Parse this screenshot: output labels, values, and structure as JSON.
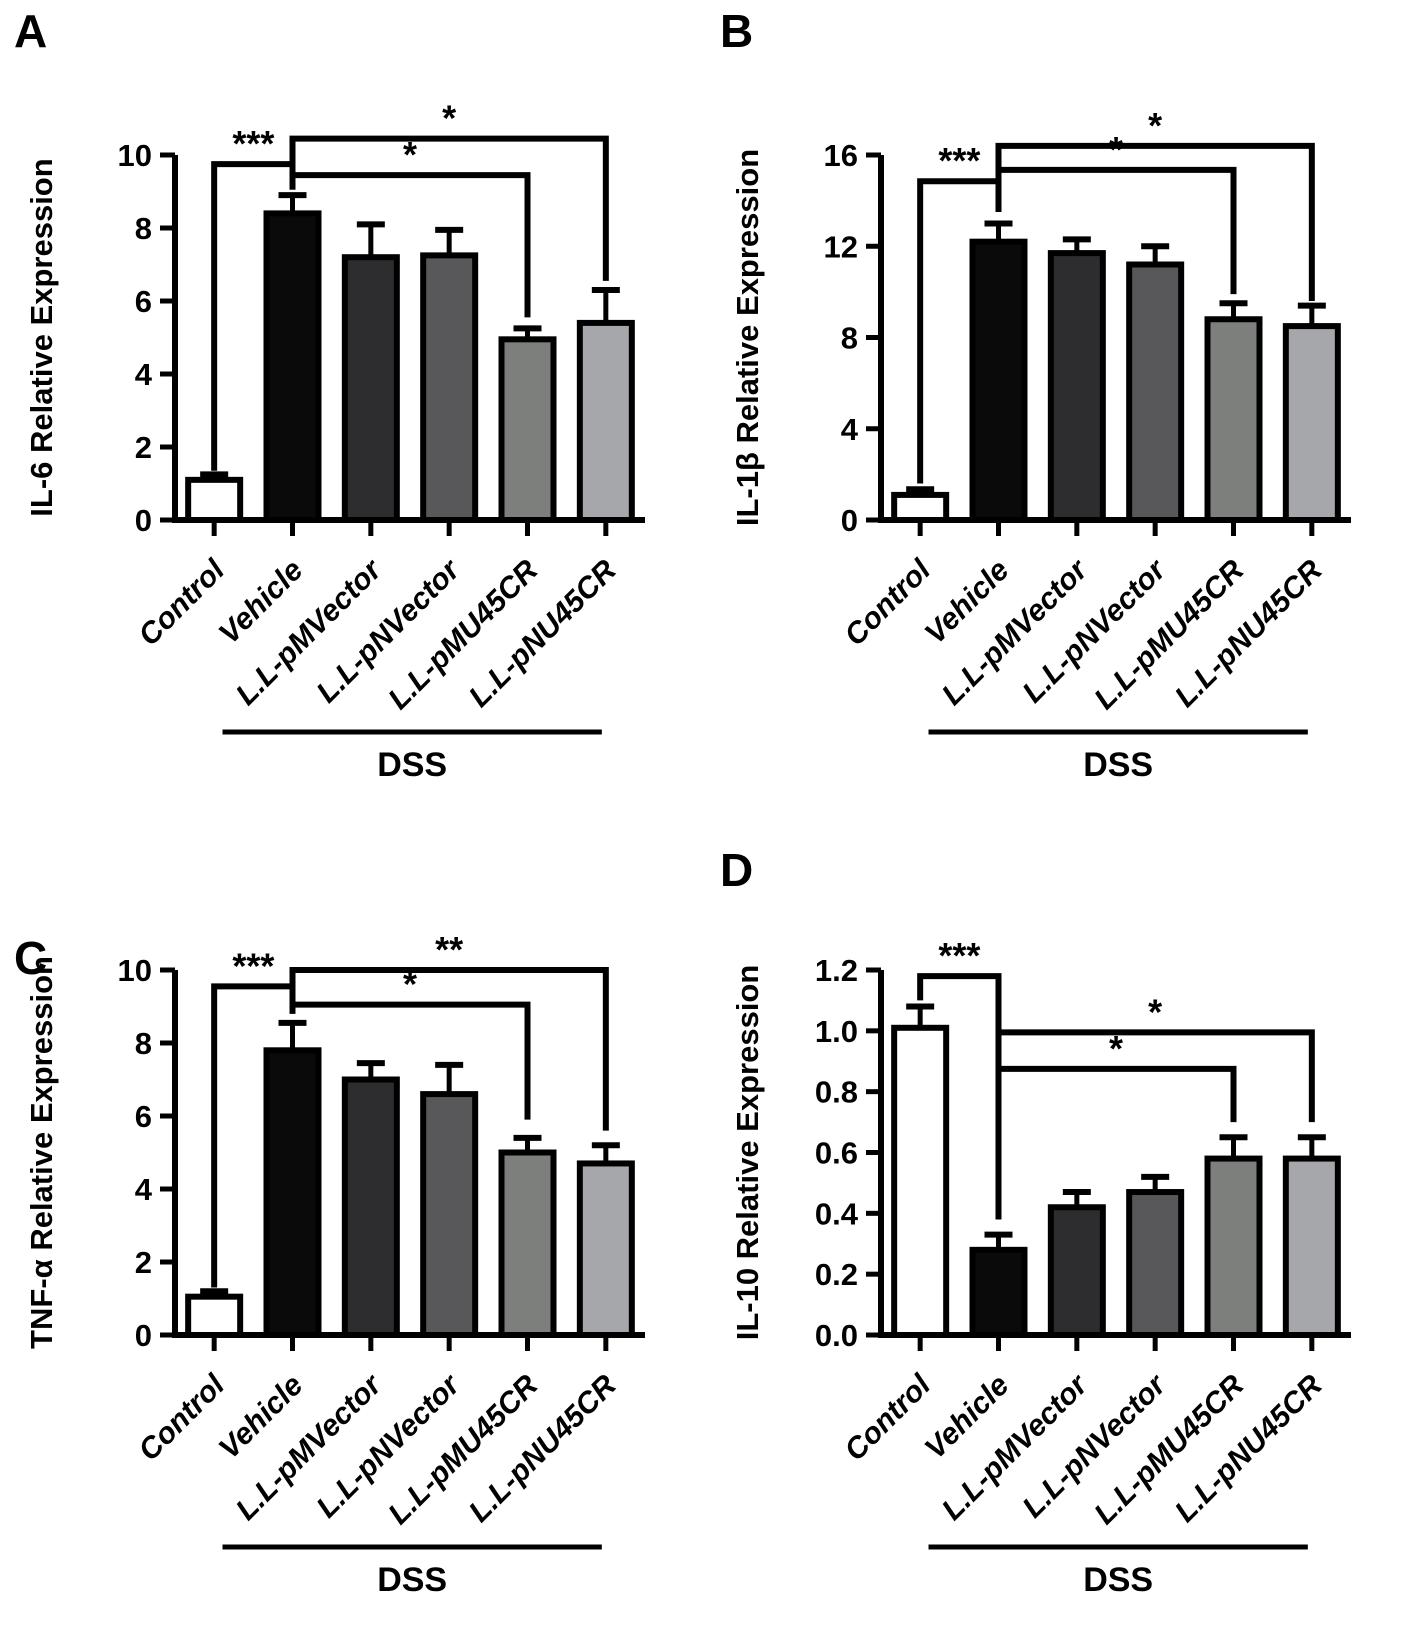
{
  "figure_name": "Cytokine relative expression bar figure",
  "styles": {
    "axis_color": "#000000",
    "bar_colors": [
      "#ffffff",
      "#0a0a0a",
      "#2d2d2f",
      "#58585a",
      "#7d7f7d",
      "#a5a7aa"
    ]
  },
  "chart_data": [
    {
      "type": "bar",
      "letter": "A",
      "ylabel": "IL-6 Relative Expression",
      "categories": [
        "Control",
        "Vehicle",
        "L.L-pMVector",
        "L.L-pNVector",
        "L.L-pMU45CR",
        "L.L-pNU45CR"
      ],
      "values": [
        1.1,
        8.4,
        7.2,
        7.25,
        4.95,
        5.4
      ],
      "errors": [
        0.15,
        0.5,
        0.9,
        0.7,
        0.3,
        0.9
      ],
      "ylim": [
        0,
        10
      ],
      "yticks": [
        "0",
        "2",
        "4",
        "6",
        "8",
        "10"
      ],
      "grid": false,
      "significance": [
        {
          "from": 1,
          "to": 5,
          "label": "*",
          "level": 10.45,
          "left_drop": 9.75,
          "right_drop": 6.55
        },
        {
          "from": 0,
          "to": 1,
          "label": "***",
          "level": 9.75,
          "left_drop": 1.35,
          "right_drop": 9.05
        },
        {
          "from": 1,
          "to": 4,
          "label": "*",
          "level": 9.45,
          "left_drop": 9.05,
          "right_drop": 5.55
        }
      ],
      "group": {
        "label": "DSS",
        "from": 1,
        "to": 5
      }
    },
    {
      "type": "bar",
      "letter": "B",
      "ylabel": "IL-1β Relative Expression",
      "categories": [
        "Control",
        "Vehicle",
        "L.L-pMVector",
        "L.L-pNVector",
        "L.L-pMU45CR",
        "L.L-pNU45CR"
      ],
      "values": [
        1.1,
        12.2,
        11.7,
        11.2,
        8.8,
        8.5
      ],
      "errors": [
        0.25,
        0.8,
        0.6,
        0.8,
        0.7,
        0.9
      ],
      "ylim": [
        0,
        16
      ],
      "yticks": [
        "0",
        "4",
        "8",
        "12",
        "16"
      ],
      "grid": false,
      "significance": [
        {
          "from": 1,
          "to": 5,
          "label": "*",
          "level": 16.4,
          "left_drop": 15.35,
          "right_drop": 9.6
        },
        {
          "from": 1,
          "to": 4,
          "label": "*",
          "level": 15.35,
          "left_drop": 13.5,
          "right_drop": 9.9
        },
        {
          "from": 0,
          "to": 1,
          "label": "***",
          "level": 14.85,
          "left_drop": 1.6,
          "right_drop": 13.5
        }
      ],
      "group": {
        "label": "DSS",
        "from": 1,
        "to": 5
      }
    },
    {
      "type": "bar",
      "letter": "C",
      "ylabel": "TNF-α Relative Expression",
      "categories": [
        "Control",
        "Vehicle",
        "L.L-pMVector",
        "L.L-pNVector",
        "L.L-pMU45CR",
        "L.L-pNU45CR"
      ],
      "values": [
        1.05,
        7.8,
        7.0,
        6.6,
        5.0,
        4.7
      ],
      "errors": [
        0.15,
        0.75,
        0.45,
        0.8,
        0.4,
        0.5
      ],
      "ylim": [
        0,
        10
      ],
      "yticks": [
        "0",
        "2",
        "4",
        "6",
        "8",
        "10"
      ],
      "grid": false,
      "significance": [
        {
          "from": 1,
          "to": 5,
          "label": "**",
          "level": 10.0,
          "left_drop": 9.55,
          "right_drop": 5.6
        },
        {
          "from": 0,
          "to": 1,
          "label": "***",
          "level": 9.55,
          "left_drop": 1.3,
          "right_drop": 8.8
        },
        {
          "from": 1,
          "to": 4,
          "label": "*",
          "level": 9.05,
          "left_drop": 8.8,
          "right_drop": 5.9
        }
      ],
      "group": {
        "label": "DSS",
        "from": 1,
        "to": 5
      }
    },
    {
      "type": "bar",
      "letter": "D",
      "ylabel": "IL-10 Relative Expression",
      "categories": [
        "Control",
        "Vehicle",
        "L.L-pMVector",
        "L.L-pNVector",
        "L.L-pMU45CR",
        "L.L-pNU45CR"
      ],
      "values": [
        1.01,
        0.28,
        0.42,
        0.47,
        0.58,
        0.58
      ],
      "errors": [
        0.07,
        0.05,
        0.05,
        0.05,
        0.07,
        0.07
      ],
      "ylim": [
        0,
        1.2
      ],
      "yticks": [
        "0.0",
        "0.2",
        "0.4",
        "0.6",
        "0.8",
        "1.0",
        "1.2"
      ],
      "grid": false,
      "significance": [
        {
          "from": 0,
          "to": 1,
          "label": "***",
          "level": 1.18,
          "left_drop": 1.1,
          "right_drop": 0.38
        },
        {
          "from": 1,
          "to": 5,
          "label": "*",
          "level": 0.995,
          "left_drop": 0.38,
          "right_drop": 0.7
        },
        {
          "from": 1,
          "to": 4,
          "label": "*",
          "level": 0.875,
          "left_drop": 0.38,
          "right_drop": 0.7
        }
      ],
      "group": {
        "label": "DSS",
        "from": 1,
        "to": 5
      }
    }
  ]
}
